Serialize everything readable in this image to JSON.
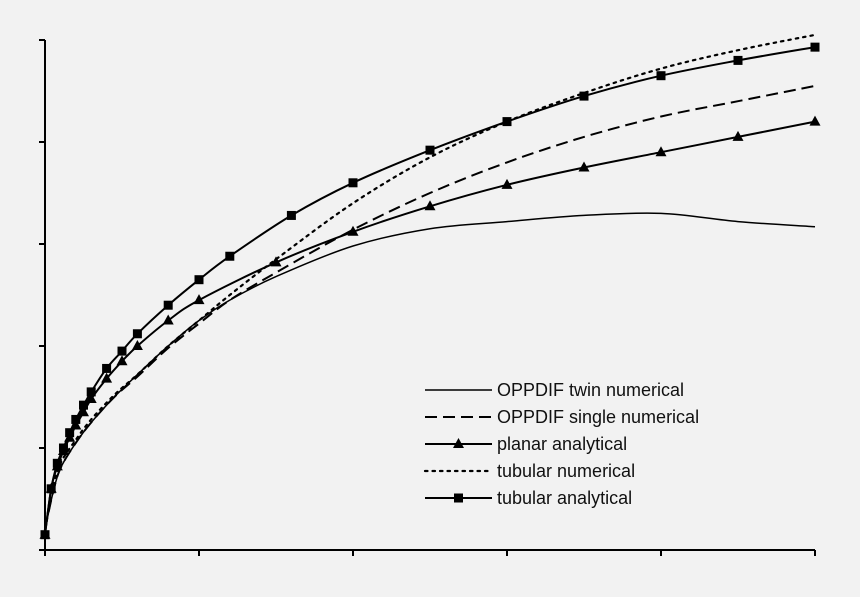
{
  "chart_data": {
    "type": "line",
    "title": "",
    "xlabel": "",
    "ylabel": "",
    "xlim": [
      0,
      5
    ],
    "ylim": [
      0,
      5
    ],
    "x_ticks": [
      0,
      1,
      2,
      3,
      4,
      5
    ],
    "y_ticks": [
      0,
      1,
      2,
      3,
      4,
      5
    ],
    "tick_labels_shown": false,
    "grid": false,
    "legend_position": "bottom-right",
    "series": [
      {
        "name": "OPPDIF twin numerical",
        "style": "solid-thin",
        "marker": "none",
        "x": [
          0,
          0.05,
          0.1,
          0.2,
          0.3,
          0.45,
          0.6,
          0.8,
          1.0,
          1.2,
          1.5,
          2.0,
          2.5,
          3.0,
          3.5,
          4.0,
          4.5,
          5.0
        ],
        "y": [
          0.2,
          0.55,
          0.8,
          1.05,
          1.25,
          1.5,
          1.72,
          2.0,
          2.25,
          2.45,
          2.68,
          2.98,
          3.15,
          3.22,
          3.28,
          3.3,
          3.22,
          3.17
        ]
      },
      {
        "name": "OPPDIF single numerical",
        "style": "dashed",
        "marker": "none",
        "x": [
          0,
          0.05,
          0.1,
          0.2,
          0.3,
          0.45,
          0.6,
          0.8,
          1.0,
          1.2,
          1.5,
          2.0,
          2.5,
          3.0,
          3.5,
          4.0,
          4.5,
          5.0
        ],
        "y": [
          0.2,
          0.55,
          0.8,
          1.05,
          1.25,
          1.5,
          1.7,
          1.98,
          2.22,
          2.45,
          2.72,
          3.14,
          3.5,
          3.8,
          4.05,
          4.25,
          4.4,
          4.55
        ]
      },
      {
        "name": "planar analytical",
        "style": "solid",
        "marker": "triangle",
        "x": [
          0,
          0.04,
          0.08,
          0.12,
          0.16,
          0.2,
          0.25,
          0.3,
          0.4,
          0.5,
          0.6,
          0.8,
          1.0,
          1.5,
          2.0,
          2.5,
          3.0,
          3.5,
          4.0,
          4.5,
          5.0
        ],
        "y": [
          0.15,
          0.6,
          0.82,
          0.97,
          1.1,
          1.22,
          1.35,
          1.48,
          1.68,
          1.85,
          2.0,
          2.25,
          2.45,
          2.82,
          3.12,
          3.37,
          3.58,
          3.75,
          3.9,
          4.05,
          4.2
        ]
      },
      {
        "name": "tubular numerical",
        "style": "dotted",
        "marker": "none",
        "x": [
          0,
          0.05,
          0.1,
          0.2,
          0.3,
          0.45,
          0.6,
          0.8,
          1.0,
          1.2,
          1.5,
          2.0,
          2.5,
          3.0,
          3.5,
          4.0,
          4.5,
          5.0
        ],
        "y": [
          0.2,
          0.6,
          0.85,
          1.08,
          1.28,
          1.52,
          1.72,
          2.0,
          2.25,
          2.5,
          2.85,
          3.4,
          3.85,
          4.2,
          4.48,
          4.72,
          4.9,
          5.05
        ]
      },
      {
        "name": "tubular analytical",
        "style": "solid",
        "marker": "square",
        "x": [
          0,
          0.04,
          0.08,
          0.12,
          0.16,
          0.2,
          0.25,
          0.3,
          0.4,
          0.5,
          0.6,
          0.8,
          1.0,
          1.2,
          1.6,
          2.0,
          2.5,
          3.0,
          3.5,
          4.0,
          4.5,
          5.0
        ],
        "y": [
          0.15,
          0.6,
          0.85,
          1.0,
          1.15,
          1.28,
          1.42,
          1.55,
          1.78,
          1.95,
          2.12,
          2.4,
          2.65,
          2.88,
          3.28,
          3.6,
          3.92,
          4.2,
          4.45,
          4.65,
          4.8,
          4.93
        ]
      }
    ]
  }
}
